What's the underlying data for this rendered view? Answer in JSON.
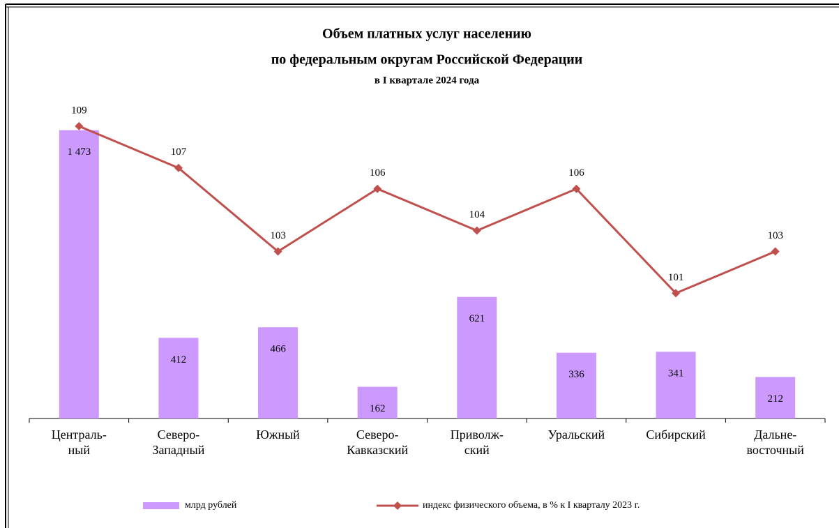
{
  "chart_data": {
    "type": "bar-line",
    "title": "Объем платных  услуг населению",
    "title2": "по федеральным  округам  Российской  Федерации",
    "subtitle": "в  I квартале  2024 года",
    "categories": [
      "Централь-\nный",
      "Северо-\nЗападный",
      "Южный",
      "Северо-\nКавказский",
      "Приволж-\nский",
      "Уральский",
      "Сибирский",
      "Дальне-\nвосточный"
    ],
    "series": [
      {
        "name": "млрд рублей",
        "type": "bar",
        "color": "#cc99ff",
        "values": [
          1473,
          412,
          466,
          162,
          621,
          336,
          341,
          212
        ],
        "value_labels": [
          "1 473",
          "412",
          "466",
          "162",
          "621",
          "336",
          "341",
          "212"
        ]
      },
      {
        "name": "индекс физического объема, в % к I кварталу 2023 г.",
        "type": "line",
        "axis": "y2",
        "color": "#c0504d",
        "values": [
          109,
          107,
          103,
          106,
          104,
          106,
          101,
          103
        ]
      }
    ],
    "ylim": [
      0,
      1600
    ],
    "y2lim": [
      95,
      110
    ]
  }
}
